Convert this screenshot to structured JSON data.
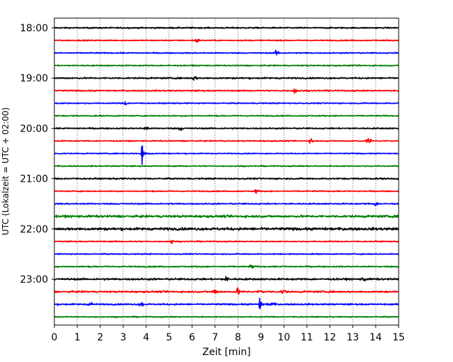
{
  "chart_data": {
    "type": "line",
    "title": "",
    "xlabel": "Zeit  [min]",
    "ylabel": "UTC (Lokalzeit = UTC + 02:00)",
    "xlim": [
      0,
      15
    ],
    "x_ticks": [
      "0",
      "1",
      "2",
      "3",
      "4",
      "5",
      "6",
      "7",
      "8",
      "9",
      "10",
      "11",
      "12",
      "13",
      "14",
      "15"
    ],
    "y_tick_labels": [
      "18:00",
      "19:00",
      "20:00",
      "21:00",
      "22:00",
      "23:00"
    ],
    "grid": "vertical dotted lines at each minute",
    "line_interval_minutes": 15,
    "color_cycle": [
      "#000000",
      "#ff0000",
      "#0000ff",
      "#008000"
    ],
    "series": [
      {
        "start": "18:00",
        "color": "#000000",
        "noise": 0.35,
        "events": []
      },
      {
        "start": "18:15",
        "color": "#ff0000",
        "noise": 0.3,
        "events": [
          {
            "t": 6.2,
            "amp": 1.2
          }
        ]
      },
      {
        "start": "18:30",
        "color": "#0000ff",
        "noise": 0.3,
        "events": [
          {
            "t": 9.7,
            "amp": 1.3
          }
        ]
      },
      {
        "start": "18:45",
        "color": "#008000",
        "noise": 0.3,
        "events": []
      },
      {
        "start": "19:00",
        "color": "#000000",
        "noise": 0.4,
        "events": [
          {
            "t": 6.1,
            "amp": 1.3
          }
        ]
      },
      {
        "start": "19:15",
        "color": "#ff0000",
        "noise": 0.35,
        "events": [
          {
            "t": 10.5,
            "amp": 1.5
          }
        ]
      },
      {
        "start": "19:30",
        "color": "#0000ff",
        "noise": 0.3,
        "events": [
          {
            "t": 3.1,
            "amp": 1.0
          }
        ]
      },
      {
        "start": "19:45",
        "color": "#008000",
        "noise": 0.3,
        "events": []
      },
      {
        "start": "20:00",
        "color": "#000000",
        "noise": 0.35,
        "events": [
          {
            "t": 4.0,
            "amp": 1.0
          },
          {
            "t": 5.5,
            "amp": 1.0
          }
        ]
      },
      {
        "start": "20:15",
        "color": "#ff0000",
        "noise": 0.3,
        "events": [
          {
            "t": 11.2,
            "amp": 1.4
          },
          {
            "t": 13.7,
            "amp": 2.2
          }
        ]
      },
      {
        "start": "20:30",
        "color": "#0000ff",
        "noise": 0.25,
        "events": [
          {
            "t": 3.82,
            "amp": 5.5,
            "spike": true
          }
        ]
      },
      {
        "start": "20:45",
        "color": "#008000",
        "noise": 0.3,
        "events": []
      },
      {
        "start": "21:00",
        "color": "#000000",
        "noise": 0.4,
        "events": []
      },
      {
        "start": "21:15",
        "color": "#ff0000",
        "noise": 0.3,
        "events": [
          {
            "t": 8.8,
            "amp": 1.0
          }
        ]
      },
      {
        "start": "21:30",
        "color": "#0000ff",
        "noise": 0.35,
        "events": [
          {
            "t": 14.0,
            "amp": 1.0
          }
        ]
      },
      {
        "start": "21:45",
        "color": "#008000",
        "noise": 0.6,
        "events": []
      },
      {
        "start": "22:00",
        "color": "#000000",
        "noise": 0.7,
        "events": []
      },
      {
        "start": "22:15",
        "color": "#ff0000",
        "noise": 0.3,
        "events": [
          {
            "t": 5.1,
            "amp": 1.2
          }
        ]
      },
      {
        "start": "22:30",
        "color": "#0000ff",
        "noise": 0.3,
        "events": []
      },
      {
        "start": "22:45",
        "color": "#008000",
        "noise": 0.35,
        "events": [
          {
            "t": 8.6,
            "amp": 1.0
          }
        ]
      },
      {
        "start": "23:00",
        "color": "#000000",
        "noise": 0.5,
        "events": [
          {
            "t": 7.5,
            "amp": 1.1
          },
          {
            "t": 13.5,
            "amp": 1.1
          }
        ]
      },
      {
        "start": "23:15",
        "color": "#ff0000",
        "noise": 0.45,
        "events": [
          {
            "t": 7.0,
            "amp": 1.6
          },
          {
            "t": 8.0,
            "amp": 1.6
          },
          {
            "t": 9.0,
            "amp": 1.6
          },
          {
            "t": 10.0,
            "amp": 1.6
          }
        ]
      },
      {
        "start": "23:30",
        "color": "#0000ff",
        "noise": 0.4,
        "events": [
          {
            "t": 1.6,
            "amp": 1.2
          },
          {
            "t": 3.8,
            "amp": 1.2
          },
          {
            "t": 8.95,
            "amp": 3.5,
            "spike": true
          },
          {
            "t": 9.5,
            "amp": 1.5
          }
        ]
      },
      {
        "start": "23:45",
        "color": "#008000",
        "noise": 0.3,
        "events": []
      }
    ]
  }
}
